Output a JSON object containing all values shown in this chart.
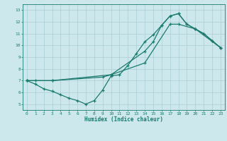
{
  "xlabel": "Humidex (Indice chaleur)",
  "xlim": [
    -0.5,
    23.5
  ],
  "ylim": [
    4.5,
    13.5
  ],
  "xticks": [
    0,
    1,
    2,
    3,
    4,
    5,
    6,
    7,
    8,
    9,
    10,
    11,
    12,
    13,
    14,
    15,
    16,
    17,
    18,
    19,
    20,
    21,
    22,
    23
  ],
  "yticks": [
    5,
    6,
    7,
    8,
    9,
    10,
    11,
    12,
    13
  ],
  "bg_color": "#cce8ec",
  "grid_color": "#aacdd4",
  "line_color": "#1a7a6e",
  "curve1_x": [
    0,
    1,
    2,
    3,
    4,
    5,
    6,
    7,
    8,
    9,
    10,
    11,
    12,
    13,
    14,
    15,
    16,
    17,
    18,
    19,
    20,
    21,
    22,
    23
  ],
  "curve1_y": [
    7.0,
    6.7,
    6.3,
    6.1,
    5.8,
    5.5,
    5.3,
    5.0,
    5.3,
    6.2,
    7.4,
    7.5,
    8.3,
    9.3,
    10.3,
    10.9,
    11.7,
    12.5,
    12.7,
    11.8,
    11.4,
    11.0,
    10.4,
    9.8
  ],
  "curve2_x": [
    0,
    1,
    3,
    10,
    14,
    15,
    16,
    17,
    18,
    19,
    20,
    21,
    22,
    23
  ],
  "curve2_y": [
    7.0,
    7.0,
    7.0,
    7.5,
    9.5,
    10.3,
    11.7,
    12.5,
    12.7,
    11.8,
    11.4,
    11.0,
    10.4,
    9.8
  ],
  "curve3_x": [
    0,
    3,
    9,
    10,
    14,
    17,
    18,
    20,
    23
  ],
  "curve3_y": [
    7.0,
    7.0,
    7.3,
    7.5,
    8.5,
    11.8,
    11.8,
    11.4,
    9.8
  ]
}
